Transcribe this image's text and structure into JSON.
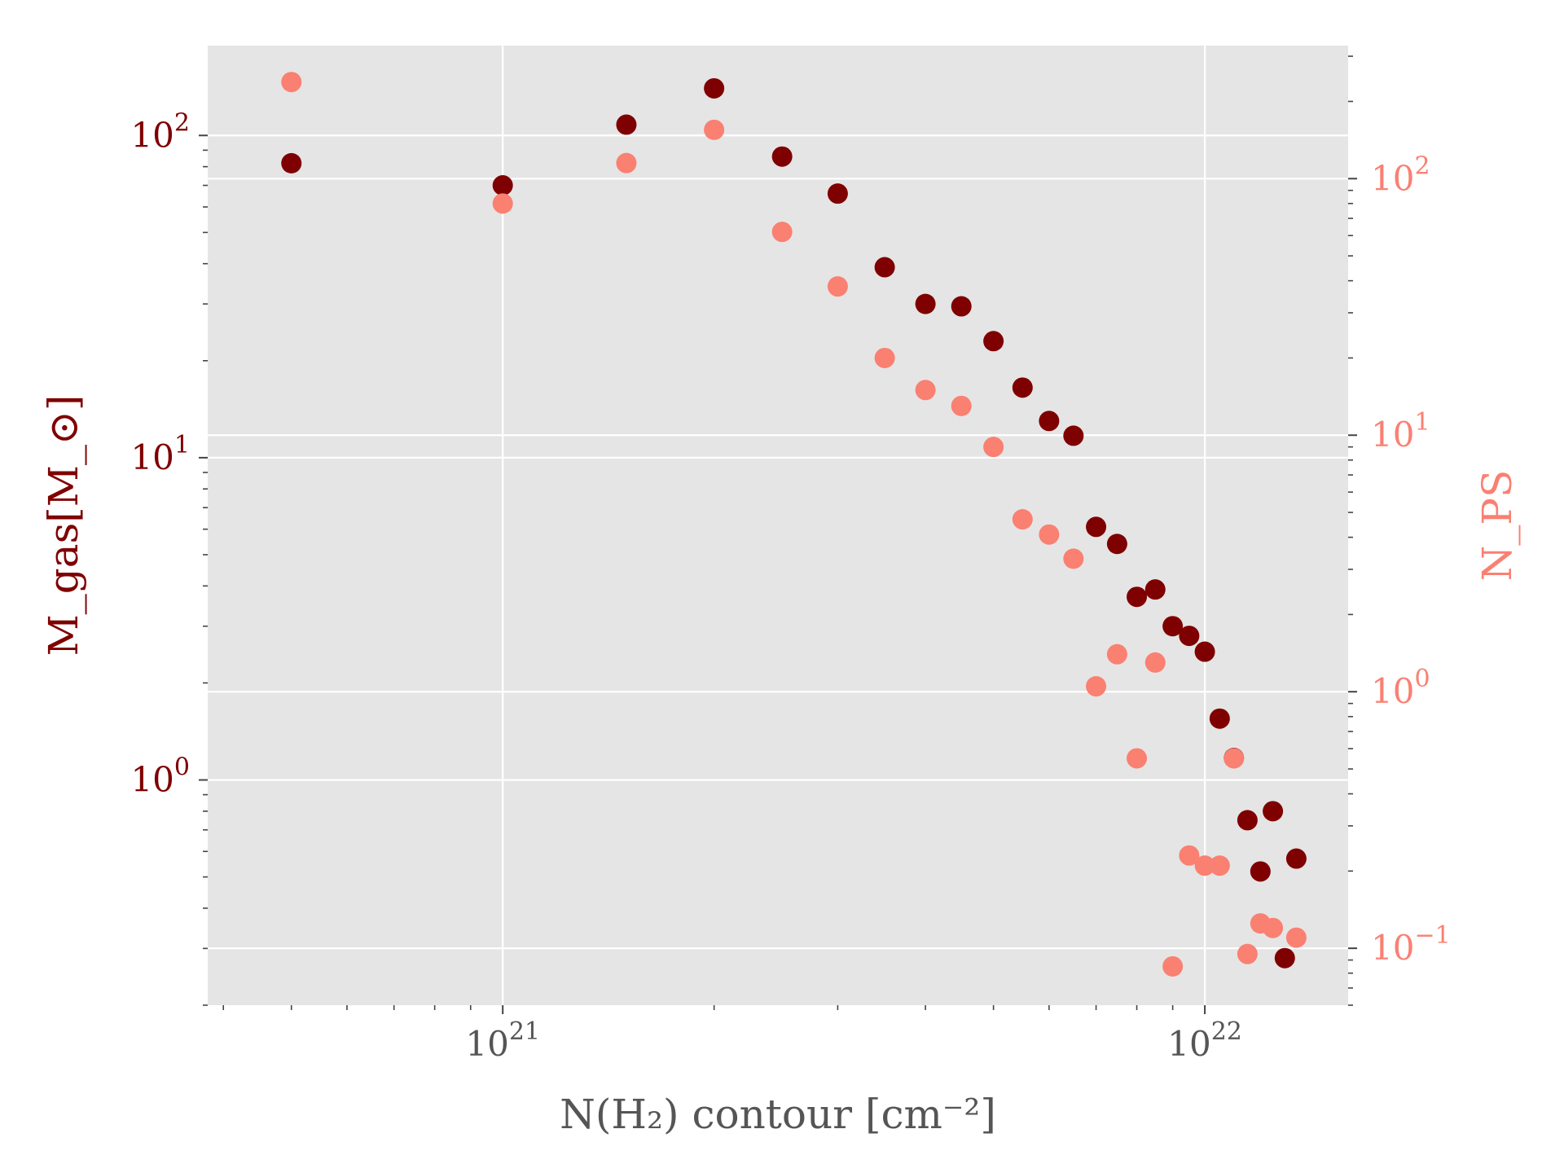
{
  "chart_data": {
    "type": "scatter",
    "title": "",
    "xlabel": "N(H₂) contour [cm⁻²]",
    "ylabel_left": "M_gas[M_⊙]",
    "ylabel_right": "N_PS",
    "x_scale": "log",
    "y_left_scale": "log",
    "y_right_scale": "log",
    "xlim": [
      3.8e+20,
      1.6e+22
    ],
    "ylim_left": [
      0.2,
      190
    ],
    "ylim_right": [
      0.06,
      330
    ],
    "grid": true,
    "background": "#e5e5e5",
    "x_ticks": [
      {
        "base": "10",
        "exp": "21",
        "value": 1e+21
      },
      {
        "base": "10",
        "exp": "22",
        "value": 1e+22
      }
    ],
    "y_left_ticks": [
      {
        "base": "10",
        "exp": "2",
        "value": 100
      },
      {
        "base": "10",
        "exp": "1",
        "value": 10
      },
      {
        "base": "10",
        "exp": "0",
        "value": 1
      }
    ],
    "y_right_ticks": [
      {
        "base": "10",
        "exp": "2",
        "value": 100
      },
      {
        "base": "10",
        "exp": "1",
        "value": 10
      },
      {
        "base": "10",
        "exp": "0",
        "value": 1
      },
      {
        "base": "10",
        "exp": "−1",
        "value": 0.1
      }
    ],
    "colors": {
      "mgas": "#7f0000",
      "nps": "#fa8072",
      "xlabel": "#555555",
      "grid": "#ffffff"
    },
    "series": [
      {
        "axis": "left",
        "color": "#7f0000",
        "x": [
          5e+20,
          1e+21,
          1.5e+21,
          2e+21,
          2.5e+21,
          3e+21,
          3.5e+21,
          4e+21,
          4.5e+21,
          5e+21,
          5.5e+21,
          6e+21,
          6.5e+21,
          7e+21,
          7.5e+21,
          8e+21,
          8.5e+21,
          9e+21,
          9.5e+21,
          1e+22,
          1.05e+22,
          1.1e+22,
          1.15e+22,
          1.2e+22,
          1.25e+22,
          1.3e+22,
          1.35e+22
        ],
        "y": [
          82,
          70,
          108,
          140,
          86,
          66,
          39,
          30,
          29.5,
          23,
          16.5,
          13,
          11.7,
          6.1,
          5.4,
          3.7,
          3.9,
          3.0,
          2.8,
          2.5,
          1.55,
          1.17,
          0.75,
          0.52,
          0.8,
          0.28,
          0.57
        ]
      },
      {
        "axis": "right",
        "color": "#fa8072",
        "x": [
          5e+20,
          1e+21,
          1.5e+21,
          2e+21,
          2.5e+21,
          3e+21,
          3.5e+21,
          4e+21,
          4.5e+21,
          5e+21,
          5.5e+21,
          6e+21,
          6.5e+21,
          7e+21,
          7.5e+21,
          8e+21,
          8.5e+21,
          9e+21,
          9.5e+21,
          1e+22,
          1.05e+22,
          1.1e+22,
          1.15e+22,
          1.2e+22,
          1.25e+22,
          1.35e+22
        ],
        "y": [
          238,
          80,
          115,
          155,
          62,
          38,
          20,
          15,
          13,
          9,
          4.7,
          4.1,
          3.3,
          1.05,
          1.4,
          0.55,
          1.3,
          0.085,
          0.23,
          0.21,
          0.21,
          0.55,
          0.095,
          0.125,
          0.12,
          0.11
        ]
      }
    ]
  }
}
